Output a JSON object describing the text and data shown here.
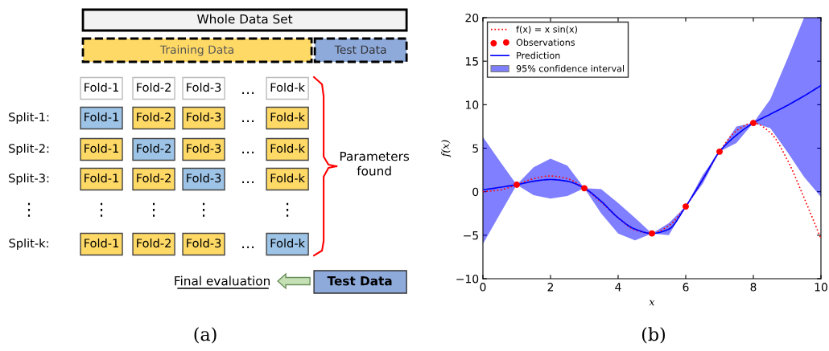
{
  "chart_data": [
    {
      "type": "other",
      "categories": [
        "Fold-1",
        "Fold-2",
        "Fold-3",
        "…",
        "Fold-k"
      ],
      "y_categories": [
        "Split-1:",
        "Split-2:",
        "Split-3:",
        "⋮",
        "Split-k:"
      ],
      "annotations": [
        "Whole Data Set",
        "Training Data",
        "Test Data",
        "Parameters found",
        "Final evaluation",
        "Test Data",
        "(a)"
      ]
    },
    {
      "type": "line",
      "xlabel": "x",
      "ylabel": "f(x)",
      "xlim": [
        0,
        10
      ],
      "ylim": [
        -10,
        20
      ],
      "xticks": [
        0,
        2,
        4,
        6,
        8,
        10
      ],
      "yticks": [
        -10,
        -5,
        0,
        5,
        10,
        15,
        20
      ],
      "grid": false,
      "legend": "top left",
      "annotations": [
        "(b)",
        "95% confidence interval"
      ],
      "series": [
        {
          "name": "f(x) = x sin(x)",
          "type": "line",
          "line_style": "dotted",
          "color": "#ff0000",
          "x": [
            0,
            0.5,
            1,
            1.5,
            2,
            2.5,
            3,
            3.5,
            4,
            4.5,
            5,
            5.5,
            6,
            6.5,
            7,
            7.5,
            8,
            8.5,
            9,
            9.5,
            10
          ],
          "values": [
            0.0,
            0.2,
            0.8,
            1.5,
            1.8,
            1.5,
            0.4,
            -1.2,
            -3.0,
            -4.4,
            -4.8,
            -3.9,
            -1.7,
            1.4,
            4.6,
            7.0,
            7.9,
            6.8,
            3.7,
            -0.7,
            -5.4
          ]
        },
        {
          "name": "Observations",
          "type": "scatter",
          "marker": "circle",
          "color": "#ff0000",
          "x": [
            1,
            3,
            5,
            6,
            7,
            8
          ],
          "values": [
            0.8,
            0.4,
            -4.8,
            -1.7,
            4.6,
            7.9
          ]
        },
        {
          "name": "Prediction",
          "type": "line",
          "line_style": "solid",
          "color": "#0000ff",
          "x": [
            0,
            0.5,
            1,
            1.5,
            2,
            2.5,
            3,
            3.5,
            4,
            4.5,
            5,
            5.5,
            6,
            6.5,
            7,
            7.5,
            8,
            8.5,
            9,
            9.5,
            10
          ],
          "values": [
            0.2,
            0.5,
            0.8,
            1.2,
            1.4,
            1.2,
            0.4,
            -1.1,
            -3.0,
            -4.3,
            -4.8,
            -4.3,
            -1.7,
            1.4,
            4.6,
            6.5,
            7.9,
            8.9,
            9.9,
            11.0,
            12.2
          ],
          "lower": [
            -6.0,
            -2.6,
            0.8,
            -0.4,
            -0.8,
            -0.5,
            0.4,
            -2.5,
            -4.8,
            -5.6,
            -4.8,
            -5.0,
            -1.7,
            0.9,
            4.6,
            5.6,
            7.9,
            7.3,
            4.6,
            1.7,
            -0.6
          ],
          "upper": [
            6.3,
            3.5,
            0.8,
            2.8,
            3.8,
            3.0,
            0.4,
            0.3,
            -1.3,
            -3.0,
            -4.8,
            -3.6,
            -1.7,
            1.9,
            4.6,
            7.5,
            7.9,
            10.6,
            15.2,
            20,
            20
          ]
        }
      ]
    }
  ]
}
